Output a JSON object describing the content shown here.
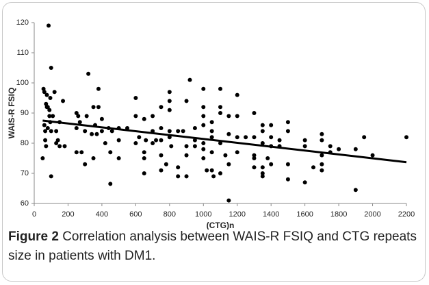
{
  "chart_data": {
    "type": "scatter",
    "xlabel": "(CTG)n",
    "ylabel": "WAIS-R FSIQ",
    "xlim": [
      0,
      2200
    ],
    "xticks": [
      0,
      200,
      400,
      600,
      800,
      1000,
      1200,
      1400,
      1600,
      1800,
      2000,
      2200
    ],
    "ylim": [
      60,
      120
    ],
    "yticks": [
      60,
      70,
      80,
      90,
      100,
      110,
      120
    ],
    "color": "#000000",
    "x": [
      50,
      55,
      60,
      60,
      65,
      65,
      70,
      70,
      75,
      75,
      80,
      80,
      85,
      90,
      90,
      95,
      95,
      100,
      100,
      100,
      110,
      120,
      130,
      130,
      140,
      150,
      150,
      170,
      180,
      250,
      250,
      250,
      260,
      270,
      280,
      300,
      300,
      310,
      320,
      340,
      350,
      350,
      360,
      370,
      380,
      380,
      400,
      400,
      420,
      440,
      450,
      450,
      460,
      500,
      500,
      500,
      550,
      600,
      600,
      600,
      620,
      650,
      650,
      650,
      650,
      660,
      700,
      700,
      700,
      720,
      750,
      750,
      750,
      750,
      750,
      780,
      800,
      800,
      800,
      800,
      800,
      810,
      850,
      850,
      850,
      880,
      900,
      900,
      900,
      900,
      920,
      950,
      950,
      950,
      1000,
      1000,
      1000,
      1000,
      1000,
      1000,
      1000,
      1020,
      1050,
      1050,
      1050,
      1050,
      1050,
      1060,
      1100,
      1100,
      1100,
      1100,
      1100,
      1130,
      1150,
      1150,
      1150,
      1150,
      1200,
      1200,
      1200,
      1200,
      1250,
      1300,
      1300,
      1300,
      1300,
      1300,
      1350,
      1350,
      1350,
      1350,
      1350,
      1350,
      1380,
      1400,
      1400,
      1400,
      1400,
      1450,
      1450,
      1500,
      1500,
      1500,
      1500,
      1600,
      1600,
      1600,
      1650,
      1700,
      1700,
      1700,
      1700,
      1700,
      1750,
      1750,
      1800,
      1900,
      1900,
      1950,
      2000,
      2200
    ],
    "values": [
      75,
      98,
      97,
      86,
      84,
      81,
      79,
      93,
      92,
      96,
      92,
      85,
      119,
      91,
      89,
      95,
      87,
      105,
      69,
      84,
      89,
      97,
      84,
      80,
      81,
      87,
      79,
      94,
      79,
      90,
      85,
      77,
      89,
      87,
      77,
      73,
      84,
      89,
      103,
      83,
      92,
      75,
      86,
      83,
      92,
      98,
      88,
      84,
      80,
      85,
      66.5,
      77,
      84,
      85,
      81,
      75,
      85,
      95,
      89,
      80,
      82,
      88,
      77,
      75,
      70,
      81,
      89,
      84,
      80,
      81,
      92,
      85,
      81,
      76,
      71,
      73,
      97,
      94,
      91,
      84,
      82,
      79,
      84,
      72,
      69,
      84,
      94,
      79,
      76,
      69,
      101,
      85,
      81,
      79,
      98,
      92,
      89,
      86,
      80,
      78,
      75,
      71,
      87,
      84,
      82,
      77,
      71,
      69,
      98,
      92,
      90,
      80,
      70,
      76,
      89,
      83,
      73,
      61,
      96,
      89,
      82,
      77,
      82,
      90,
      82,
      76,
      75,
      72,
      86,
      84,
      80,
      72,
      70,
      69,
      75,
      86,
      82,
      79,
      73,
      81,
      79,
      87,
      84,
      73,
      68,
      81,
      79,
      67,
      72,
      83,
      81,
      76,
      73,
      71,
      79,
      77,
      78,
      78,
      64.5,
      82,
      76,
      82
    ],
    "trendline": {
      "x": [
        50,
        2200
      ],
      "values": [
        87.5,
        73.7
      ]
    }
  },
  "caption": {
    "label": "Figure 2",
    "text": "Correlation analysis between WAIS-R FSIQ and CTG repeats size in patients with DM1."
  }
}
